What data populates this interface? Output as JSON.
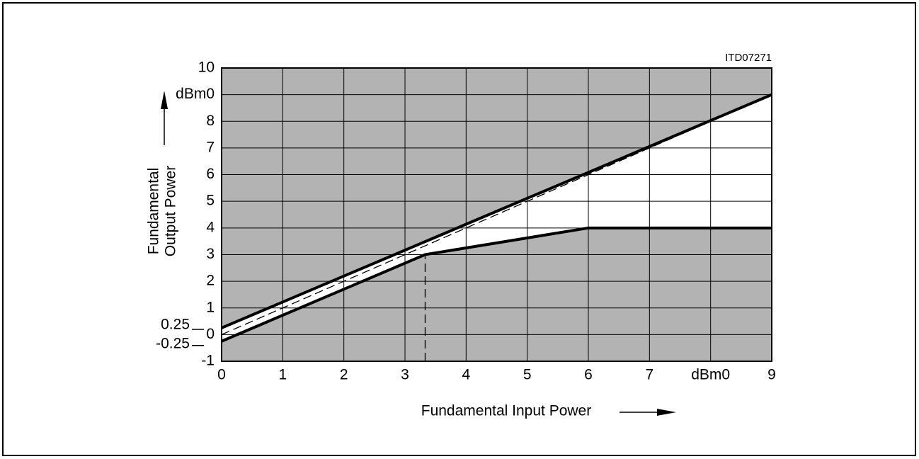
{
  "chart_data": {
    "type": "line",
    "code": "ITD07271",
    "xlabel": "Fundamental Input Power",
    "ylabel": [
      "Fundamental",
      "Output Power"
    ],
    "xlim": [
      0,
      9
    ],
    "ylim": [
      -1,
      10
    ],
    "xticks": [
      0,
      1,
      2,
      3,
      4,
      5,
      6,
      7,
      {
        "value": 8,
        "label": "dBm0"
      },
      9
    ],
    "yticks": [
      -1,
      0,
      1,
      2,
      3,
      4,
      5,
      6,
      7,
      8,
      {
        "value": 9,
        "label": "dBm0"
      },
      10
    ],
    "ylevels": [
      0.25,
      -0.25
    ],
    "grid": true,
    "background": "#b3b3b3",
    "fill_between": [
      0,
      1
    ],
    "series": [
      {
        "x": [
          0,
          9
        ],
        "values": [
          0.25,
          9
        ],
        "color": "#000000",
        "style": "solid"
      },
      {
        "x": [
          0,
          3.33,
          6,
          9
        ],
        "values": [
          -0.25,
          3,
          4,
          4
        ],
        "color": "#000000",
        "style": "solid"
      },
      {
        "x": [
          0,
          9
        ],
        "values": [
          0,
          9
        ],
        "color": "#000000",
        "style": "dashed"
      },
      {
        "x": [
          3.33,
          3.33
        ],
        "values": [
          -1,
          3
        ],
        "color": "#000000",
        "style": "dashed"
      }
    ]
  }
}
